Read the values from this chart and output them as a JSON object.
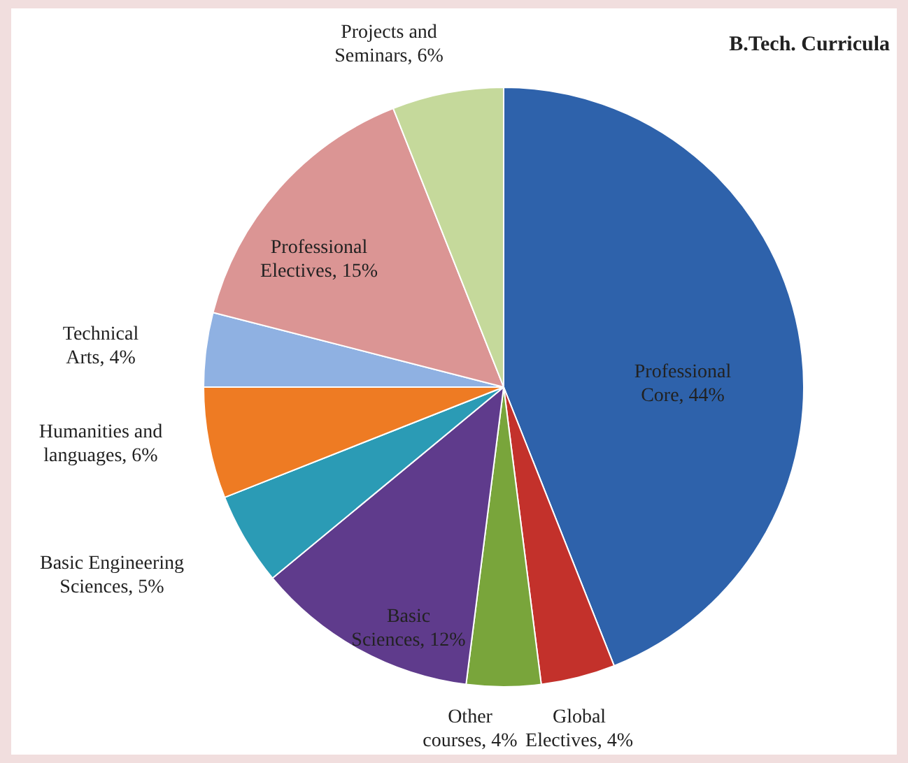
{
  "chart_data": {
    "type": "pie",
    "title": "B.Tech. Curricula",
    "categories": [
      "Professional Core",
      "Global Electives",
      "Other courses",
      "Basic Sciences",
      "Basic Engineering Sciences",
      "Humanities and languages",
      "Technical Arts",
      "Professional Electives",
      "Projects and Seminars"
    ],
    "values": [
      44,
      4,
      4,
      12,
      5,
      6,
      4,
      15,
      6
    ],
    "value_labels": [
      "44%",
      "4%",
      "4%",
      "12%",
      "5%",
      "6%",
      "4%",
      "15%",
      "6%"
    ],
    "colors": [
      "#2e62ab",
      "#c3312b",
      "#79a53b",
      "#5f3b8c",
      "#2b9bb5",
      "#ee7b23",
      "#8fb1e2",
      "#db9594",
      "#c5d99b"
    ]
  }
}
